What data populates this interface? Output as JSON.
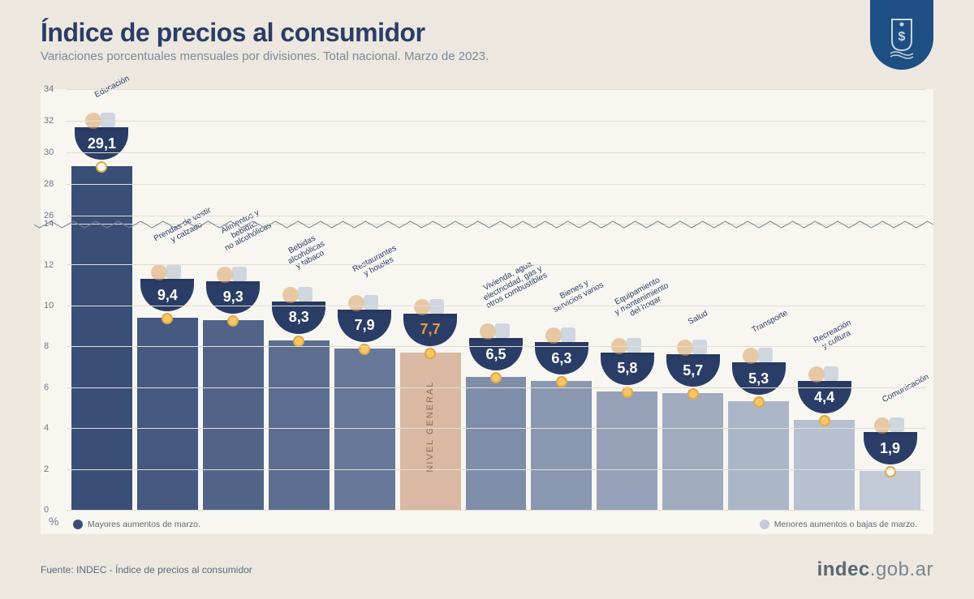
{
  "header": {
    "title": "Índice de precios al consumidor",
    "subtitle": "Variaciones porcentuales mensuales por divisiones. Total nacional. Marzo de 2023."
  },
  "chart": {
    "type": "bar",
    "background_color": "#f8f6f1",
    "page_background": "#ece8e0",
    "grid_color": "#e2ded5",
    "axis_label_color": "#6a7989",
    "axis_fontsize": 11,
    "y_axis": {
      "lower": {
        "min": 0,
        "max": 14,
        "ticks": [
          0,
          2,
          4,
          6,
          8,
          10,
          12,
          14
        ]
      },
      "upper": {
        "min": 26,
        "max": 34,
        "ticks": [
          26,
          28,
          30,
          32,
          34
        ]
      },
      "break": true
    },
    "bar_gradient_dark": [
      "#3a4f78",
      "#5a6e94"
    ],
    "bar_gradient_light": [
      "#9aa8bf",
      "#c2cad8"
    ],
    "nivel_general_color": "#d9b9a4",
    "dot_fill": "#f6c668",
    "dot_border": "#e0a946",
    "pocket_bg": "#2a3d66",
    "pocket_text": "#ffffff",
    "pocket_highlight_text": "#e59a3f",
    "label_fontsize": 10,
    "value_fontsize": 18,
    "bars": [
      {
        "label": "Educación",
        "value_text": "29,1",
        "value": 29.1,
        "is_general": false,
        "hollow_dot": true
      },
      {
        "label": "Prendas de vestir\ny calzado",
        "value_text": "9,4",
        "value": 9.4,
        "is_general": false,
        "hollow_dot": false
      },
      {
        "label": "Alimentos y\nbebidas\nno alcohólicas",
        "value_text": "9,3",
        "value": 9.3,
        "is_general": false,
        "hollow_dot": false
      },
      {
        "label": "Bebidas\nalcohólicas\ny tabaco",
        "value_text": "8,3",
        "value": 8.3,
        "is_general": false,
        "hollow_dot": false
      },
      {
        "label": "Restaurantes\ny hoteles",
        "value_text": "7,9",
        "value": 7.9,
        "is_general": false,
        "hollow_dot": false
      },
      {
        "label": "",
        "value_text": "7,7",
        "value": 7.7,
        "is_general": true,
        "hollow_dot": false,
        "general_label": "NIVEL GENERAL"
      },
      {
        "label": "Vivienda, agua,\nelectricidad, gas y\notros combustibles",
        "value_text": "6,5",
        "value": 6.5,
        "is_general": false,
        "hollow_dot": false
      },
      {
        "label": "Bienes y\nservicios varios",
        "value_text": "6,3",
        "value": 6.3,
        "is_general": false,
        "hollow_dot": false
      },
      {
        "label": "Equipamiento\ny mantenimiento\ndel hogar",
        "value_text": "5,8",
        "value": 5.8,
        "is_general": false,
        "hollow_dot": false
      },
      {
        "label": "Salud",
        "value_text": "5,7",
        "value": 5.7,
        "is_general": false,
        "hollow_dot": false
      },
      {
        "label": "Transporte",
        "value_text": "5,3",
        "value": 5.3,
        "is_general": false,
        "hollow_dot": false
      },
      {
        "label": "Recreación\ny cultura",
        "value_text": "4,4",
        "value": 4.4,
        "is_general": false,
        "hollow_dot": false
      },
      {
        "label": "Comunicación",
        "value_text": "1,9",
        "value": 1.9,
        "is_general": false,
        "hollow_dot": true
      }
    ],
    "legend": {
      "high": {
        "text": "Mayores aumentos de marzo.",
        "color": "#3a4f78"
      },
      "low": {
        "text": "Menores aumentos o bajas de marzo.",
        "color": "#c2cad8"
      }
    },
    "percent_label": "%"
  },
  "footer": {
    "source": "Fuente: INDEC - Índice de precios al consumidor",
    "logo_bold": "indec",
    "logo_light": ".gob.ar"
  }
}
